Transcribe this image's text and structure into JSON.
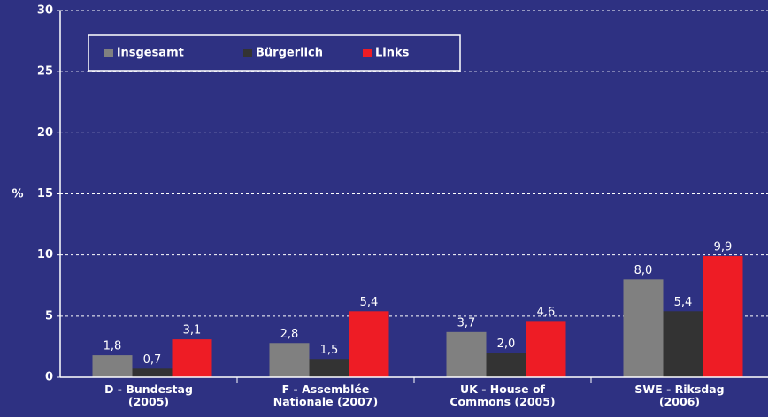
{
  "chart_data": {
    "type": "bar",
    "ylabel": "%",
    "categories": [
      "D - Bundestag\n(2005)",
      "F - Assemblée\nNationale (2007)",
      "UK - House of\nCommons (2005)",
      "SWE - Riksdag\n(2006)"
    ],
    "series": [
      {
        "name": "insgesamt",
        "color": "#808080",
        "values": [
          1.8,
          2.8,
          3.7,
          8.0
        ],
        "value_labels": [
          "1,8",
          "2,8",
          "3,7",
          "8,0"
        ]
      },
      {
        "name": "Bürgerlich",
        "color": "#333333",
        "values": [
          0.7,
          1.5,
          2.0,
          5.4
        ],
        "value_labels": [
          "0,7",
          "1,5",
          "2,0",
          "5,4"
        ]
      },
      {
        "name": "Links",
        "color": "#ee1c25",
        "values": [
          3.1,
          5.4,
          4.6,
          9.9
        ],
        "value_labels": [
          "3,1",
          "5,4",
          "4,6",
          "9,9"
        ]
      }
    ],
    "ylim": [
      0,
      30
    ],
    "yticks": [
      0,
      5,
      10,
      15,
      20,
      25,
      30
    ],
    "grid": true
  }
}
